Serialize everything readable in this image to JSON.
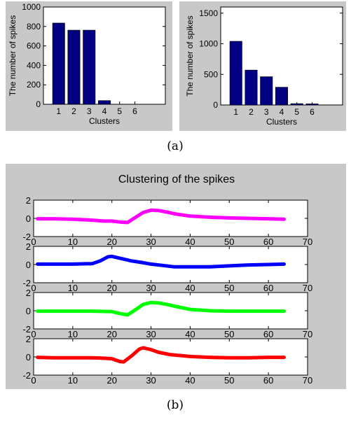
{
  "figure": {
    "caption_a": "(a)",
    "caption_b": "(b)",
    "bar_color": "#000080",
    "panel_bg": "#c8c8c8"
  },
  "chart_data": [
    {
      "type": "bar",
      "categories": [
        "1",
        "2",
        "3",
        "4",
        "5",
        "6"
      ],
      "values": [
        835,
        762,
        762,
        38,
        0,
        0
      ],
      "xlabel": "Clusters",
      "ylabel": "The number of spikes",
      "xlim": [
        0,
        8
      ],
      "ylim": [
        0,
        1000
      ],
      "yticks": [
        0,
        200,
        400,
        600,
        800,
        1000
      ],
      "grid": false
    },
    {
      "type": "bar",
      "categories": [
        "1",
        "2",
        "3",
        "4",
        "5",
        "6"
      ],
      "values": [
        1040,
        570,
        462,
        290,
        22,
        18
      ],
      "xlabel": "Clusters",
      "ylabel": "The number of spikes",
      "xlim": [
        0,
        8
      ],
      "ylim": [
        0,
        1600
      ],
      "yticks": [
        0,
        500,
        1000,
        1500
      ],
      "grid": false
    },
    {
      "type": "line",
      "title": "Clustering of the spikes",
      "xlim": [
        0,
        70
      ],
      "ylim": [
        -2,
        2
      ],
      "xticks": [
        0,
        10,
        20,
        30,
        40,
        50,
        60,
        70
      ],
      "yticks": [
        -2,
        0,
        2
      ],
      "grid": false,
      "series": [
        {
          "color": "#ff00ff",
          "points": [
            [
              1,
              -0.05
            ],
            [
              5,
              -0.05
            ],
            [
              10,
              -0.1
            ],
            [
              15,
              -0.2
            ],
            [
              18,
              -0.3
            ],
            [
              20,
              -0.3
            ],
            [
              22,
              -0.4
            ],
            [
              24,
              -0.45
            ],
            [
              26,
              0.1
            ],
            [
              28,
              0.65
            ],
            [
              30,
              0.9
            ],
            [
              32,
              0.85
            ],
            [
              34,
              0.7
            ],
            [
              36,
              0.5
            ],
            [
              40,
              0.25
            ],
            [
              45,
              0.12
            ],
            [
              50,
              0.05
            ],
            [
              55,
              0
            ],
            [
              60,
              -0.05
            ],
            [
              64,
              -0.1
            ]
          ]
        },
        {
          "color": "#0000ff",
          "points": [
            [
              1,
              0.05
            ],
            [
              5,
              0.05
            ],
            [
              10,
              0.05
            ],
            [
              15,
              0.1
            ],
            [
              17,
              0.4
            ],
            [
              19,
              0.85
            ],
            [
              20,
              0.9
            ],
            [
              22,
              0.7
            ],
            [
              25,
              0.4
            ],
            [
              28,
              0.2
            ],
            [
              30,
              0.05
            ],
            [
              33,
              -0.1
            ],
            [
              36,
              -0.25
            ],
            [
              40,
              -0.25
            ],
            [
              45,
              -0.25
            ],
            [
              50,
              -0.15
            ],
            [
              55,
              -0.05
            ],
            [
              60,
              0
            ],
            [
              64,
              0.05
            ]
          ]
        },
        {
          "color": "#00ff00",
          "points": [
            [
              1,
              -0.05
            ],
            [
              5,
              -0.05
            ],
            [
              10,
              -0.05
            ],
            [
              15,
              -0.05
            ],
            [
              20,
              -0.1
            ],
            [
              22,
              -0.3
            ],
            [
              24,
              -0.45
            ],
            [
              26,
              0.1
            ],
            [
              28,
              0.7
            ],
            [
              30,
              0.9
            ],
            [
              32,
              0.85
            ],
            [
              34,
              0.7
            ],
            [
              36,
              0.5
            ],
            [
              40,
              0.15
            ],
            [
              45,
              0
            ],
            [
              50,
              -0.05
            ],
            [
              55,
              -0.05
            ],
            [
              60,
              -0.05
            ],
            [
              64,
              -0.05
            ]
          ]
        },
        {
          "color": "#ff0000",
          "points": [
            [
              1,
              -0.05
            ],
            [
              5,
              -0.1
            ],
            [
              10,
              -0.1
            ],
            [
              15,
              -0.1
            ],
            [
              18,
              -0.15
            ],
            [
              20,
              -0.2
            ],
            [
              22,
              -0.5
            ],
            [
              23,
              -0.55
            ],
            [
              25,
              0.1
            ],
            [
              27,
              0.85
            ],
            [
              28,
              1
            ],
            [
              30,
              0.8
            ],
            [
              32,
              0.5
            ],
            [
              35,
              0.25
            ],
            [
              40,
              0.05
            ],
            [
              45,
              -0.05
            ],
            [
              50,
              -0.1
            ],
            [
              55,
              -0.1
            ],
            [
              60,
              -0.05
            ],
            [
              64,
              -0.05
            ]
          ]
        }
      ]
    }
  ]
}
